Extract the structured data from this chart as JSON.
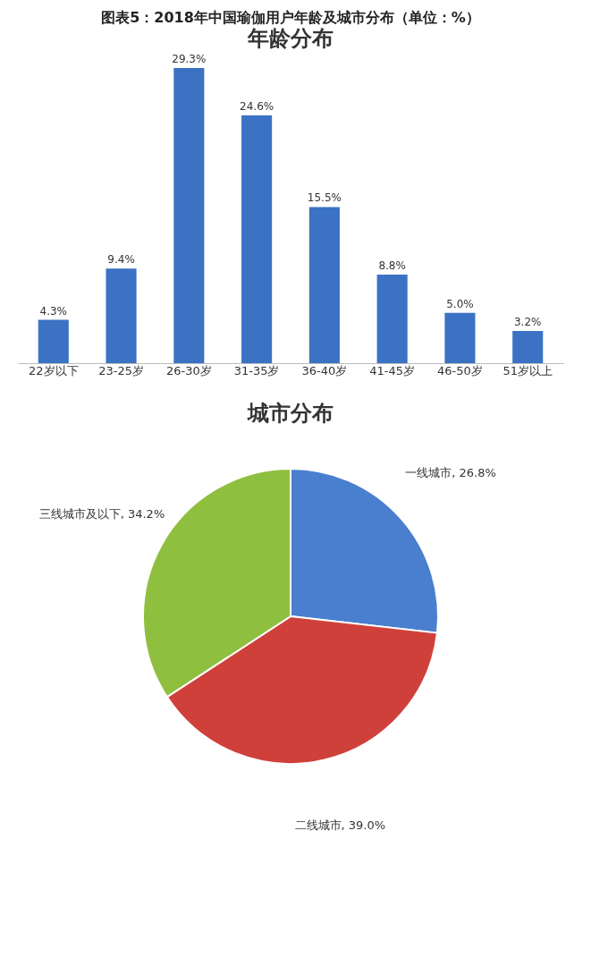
{
  "chart_data": [
    {
      "type": "bar",
      "title": "图表5：2018年中国瑜伽用户年龄及城市分布（单位：%）",
      "subtitle": "年龄分布",
      "categories": [
        "22岁以下",
        "23-25岁",
        "26-30岁",
        "31-35岁",
        "36-40岁",
        "41-45岁",
        "46-50岁",
        "51岁以上"
      ],
      "values": [
        4.3,
        9.4,
        29.3,
        24.6,
        15.5,
        8.8,
        5.0,
        3.2
      ],
      "value_labels": [
        "4.3%",
        "9.4%",
        "29.3%",
        "24.6%",
        "15.5%",
        "8.8%",
        "5.0%",
        "3.2%"
      ],
      "color": "#3b72c3",
      "grid": false
    },
    {
      "type": "pie",
      "title": "城市分布",
      "categories": [
        "一线城市",
        "二线城市",
        "三线城市及以下"
      ],
      "values": [
        26.8,
        39.0,
        34.2
      ],
      "colors": [
        "#4a7fcf",
        "#d0403a",
        "#8fbf3f"
      ],
      "value_labels": [
        "26.8%",
        "39.0%",
        "34.2%"
      ]
    }
  ]
}
